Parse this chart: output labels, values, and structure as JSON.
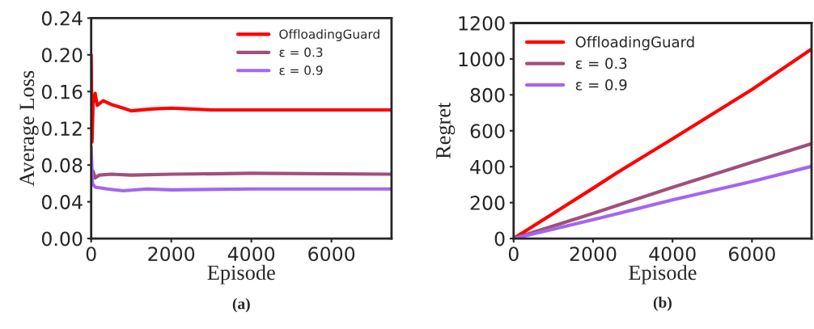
{
  "chart_data": [
    {
      "type": "line",
      "xlabel": "Episode",
      "ylabel": "Average Loss",
      "annotations": [
        "(a)"
      ],
      "xlim": [
        0,
        7500
      ],
      "xticks": [
        0,
        2000,
        4000,
        6000
      ],
      "ylim": [
        0,
        0.24
      ],
      "yticks": [
        {
          "value": 0,
          "label": "0.00"
        },
        {
          "value": 0.04,
          "label": "0.04"
        },
        {
          "value": 0.08,
          "label": "0.08"
        },
        {
          "value": 0.12,
          "label": "0.12"
        },
        {
          "value": 0.16,
          "label": "0.16"
        },
        {
          "value": 0.2,
          "label": "0.20"
        },
        {
          "value": 0.24,
          "label": "0.24"
        }
      ],
      "legend": "top right",
      "grid": false,
      "series": [
        {
          "name": "OffloadingGuard",
          "color": "#ff0000",
          "x": [
            0,
            20,
            50,
            100,
            150,
            300,
            500,
            800,
            1000,
            1500,
            2000,
            2500,
            3000,
            4000,
            5000,
            6000,
            7500
          ],
          "values": [
            0.2,
            0.105,
            0.15,
            0.158,
            0.145,
            0.15,
            0.146,
            0.142,
            0.139,
            0.141,
            0.142,
            0.141,
            0.14,
            0.14,
            0.14,
            0.14,
            0.14
          ]
        },
        {
          "name": "ε = 0.3",
          "color": "#a0507a",
          "x": [
            0,
            50,
            100,
            200,
            500,
            1000,
            2000,
            4000,
            7500
          ],
          "values": [
            0.075,
            0.073,
            0.066,
            0.069,
            0.07,
            0.069,
            0.07,
            0.071,
            0.07
          ]
        },
        {
          "name": "ε = 0.9",
          "color": "#a366f0",
          "x": [
            0,
            30,
            100,
            400,
            800,
            1400,
            2000,
            4000,
            7500
          ],
          "values": [
            0.1,
            0.06,
            0.056,
            0.054,
            0.052,
            0.054,
            0.053,
            0.054,
            0.054
          ]
        }
      ]
    },
    {
      "type": "line",
      "xlabel": "Episode",
      "ylabel": "Regret",
      "annotations": [
        "(b)"
      ],
      "xlim": [
        0,
        7500
      ],
      "xticks": [
        0,
        2000,
        4000,
        6000
      ],
      "ylim": [
        0,
        1200
      ],
      "yticks": [
        0,
        200,
        400,
        600,
        800,
        1000,
        1200
      ],
      "legend": "top left",
      "grid": false,
      "series": [
        {
          "name": "OffloadingGuard",
          "color": "#ff0000",
          "x": [
            0,
            2000,
            2700,
            4000,
            6000,
            7500
          ],
          "values": [
            0,
            280,
            380,
            555,
            830,
            1055
          ]
        },
        {
          "name": "ε = 0.3",
          "color": "#a0507a",
          "x": [
            0,
            2000,
            4000,
            6000,
            7500
          ],
          "values": [
            0,
            140,
            285,
            425,
            528
          ]
        },
        {
          "name": "ε = 0.9",
          "color": "#a366f0",
          "x": [
            0,
            2000,
            4000,
            6000,
            7500
          ],
          "values": [
            0,
            105,
            215,
            318,
            402
          ]
        }
      ]
    }
  ]
}
